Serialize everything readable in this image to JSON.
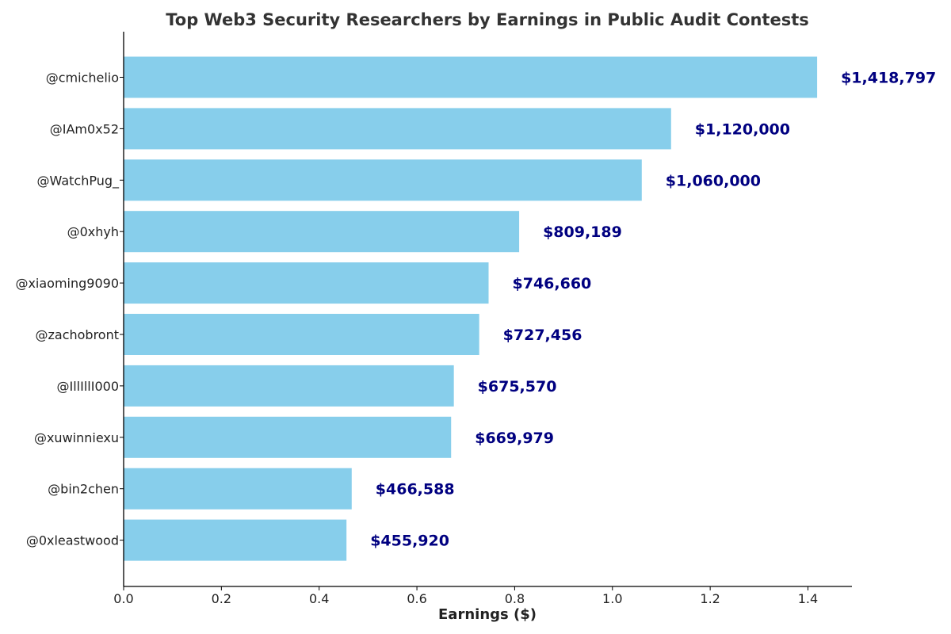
{
  "chart_data": {
    "type": "bar",
    "orientation": "horizontal",
    "title": "Top Web3 Security Researchers by Earnings in Public Audit Contests",
    "xlabel": "Earnings ($)",
    "ylabel": "",
    "categories": [
      "@cmichelio",
      "@IAm0x52",
      "@WatchPug_",
      "@0xhyh",
      "@xiaoming9090",
      "@zachobront",
      "@IllIllI000",
      "@xuwinniexu",
      "@bin2chen",
      "@0xleastwood"
    ],
    "values": [
      1418797,
      1120000,
      1060000,
      809189,
      746660,
      727456,
      675570,
      669979,
      466588,
      455920
    ],
    "value_labels": [
      "$1,418,797",
      "$1,120,000",
      "$1,060,000",
      "$809,189",
      "$746,660",
      "$727,456",
      "$675,570",
      "$669,979",
      "$466,588",
      "$455,920"
    ],
    "xlim": [
      0,
      1490000
    ],
    "xticks": [
      0,
      200000,
      400000,
      600000,
      800000,
      1000000,
      1200000,
      1400000
    ],
    "xtick_labels": [
      "0.0",
      "0.2",
      "0.4",
      "0.6",
      "0.8",
      "1.0",
      "1.2",
      "1.4"
    ],
    "grid": false,
    "legend": "none",
    "colors": {
      "bar": "#87ceeb",
      "value_label": "#000080",
      "title": "#333333",
      "axis": "#000000"
    }
  }
}
